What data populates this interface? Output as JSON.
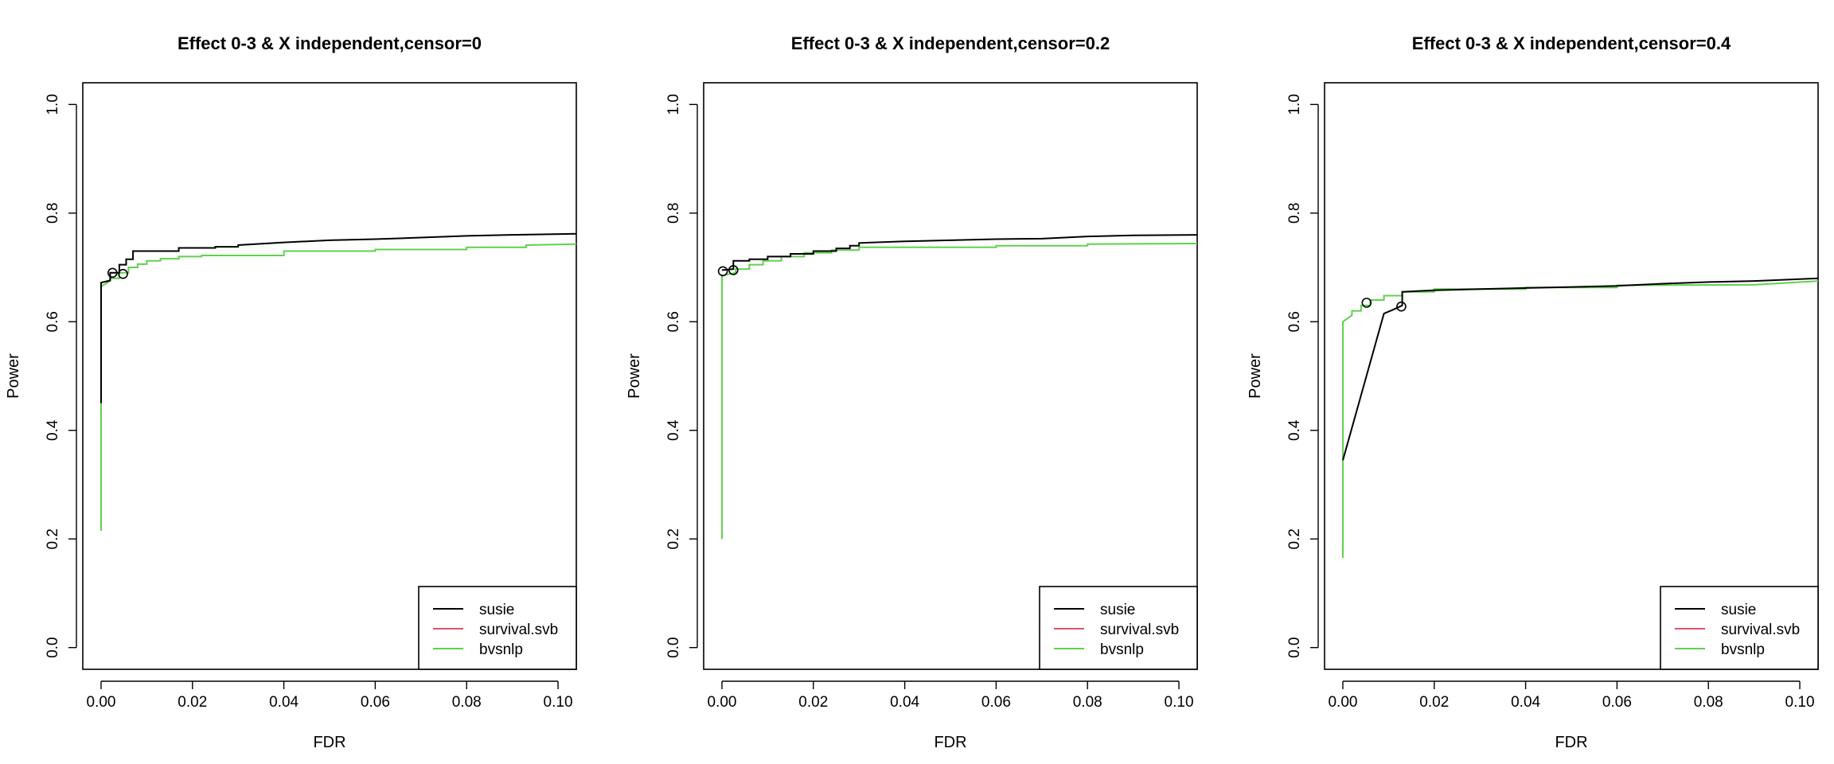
{
  "chart_data": [
    {
      "type": "line",
      "title": "Effect 0-3 & X independent,censor=0",
      "xlabel": "FDR",
      "ylabel": "Power",
      "xlim": [
        -0.004,
        0.104
      ],
      "ylim": [
        -0.04,
        1.04
      ],
      "xticks": [
        0.0,
        0.02,
        0.04,
        0.06,
        0.08,
        0.1
      ],
      "xtick_labels": [
        "0.00",
        "0.02",
        "0.04",
        "0.06",
        "0.08",
        "0.10"
      ],
      "yticks": [
        0.0,
        0.2,
        0.4,
        0.6,
        0.8,
        1.0
      ],
      "ytick_labels": [
        "0.0",
        "0.2",
        "0.4",
        "0.6",
        "0.8",
        "1.0"
      ],
      "grid": false,
      "legend_position": "bottom-right",
      "series": [
        {
          "name": "susie",
          "color": "#000000",
          "x": [
            0.0,
            0.0,
            0.0,
            0.002,
            0.002,
            0.004,
            0.004,
            0.0055,
            0.0055,
            0.007,
            0.007,
            0.012,
            0.017,
            0.017,
            0.025,
            0.025,
            0.03,
            0.03,
            0.04,
            0.05,
            0.06,
            0.07,
            0.08,
            0.09,
            0.104
          ],
          "y": [
            0.45,
            0.67,
            0.672,
            0.676,
            0.69,
            0.69,
            0.705,
            0.705,
            0.715,
            0.715,
            0.73,
            0.73,
            0.73,
            0.736,
            0.736,
            0.738,
            0.738,
            0.741,
            0.746,
            0.75,
            0.752,
            0.755,
            0.758,
            0.76,
            0.762
          ]
        },
        {
          "name": "survival.svb",
          "color": "#df536b",
          "x": [],
          "y": []
        },
        {
          "name": "bvsnlp",
          "color": "#61d04f",
          "x": [
            0.0,
            0.0,
            0.0,
            0.002,
            0.002,
            0.004,
            0.004,
            0.006,
            0.006,
            0.008,
            0.008,
            0.01,
            0.01,
            0.013,
            0.013,
            0.017,
            0.017,
            0.022,
            0.022,
            0.04,
            0.04,
            0.06,
            0.06,
            0.08,
            0.08,
            0.093,
            0.093,
            0.104
          ],
          "y": [
            0.215,
            0.44,
            0.665,
            0.675,
            0.68,
            0.68,
            0.69,
            0.69,
            0.7,
            0.7,
            0.706,
            0.706,
            0.712,
            0.712,
            0.716,
            0.716,
            0.72,
            0.72,
            0.722,
            0.722,
            0.73,
            0.73,
            0.733,
            0.733,
            0.737,
            0.737,
            0.741,
            0.743
          ]
        }
      ],
      "markers": [
        {
          "series": "susie",
          "x": 0.0025,
          "y": 0.69
        },
        {
          "series": "susie",
          "x": 0.0048,
          "y": 0.688
        }
      ]
    },
    {
      "type": "line",
      "title": "Effect 0-3 & X independent,censor=0.2",
      "xlabel": "FDR",
      "ylabel": "Power",
      "xlim": [
        -0.004,
        0.104
      ],
      "ylim": [
        -0.04,
        1.04
      ],
      "xticks": [
        0.0,
        0.02,
        0.04,
        0.06,
        0.08,
        0.1
      ],
      "xtick_labels": [
        "0.00",
        "0.02",
        "0.04",
        "0.06",
        "0.08",
        "0.10"
      ],
      "yticks": [
        0.0,
        0.2,
        0.4,
        0.6,
        0.8,
        1.0
      ],
      "ytick_labels": [
        "0.0",
        "0.2",
        "0.4",
        "0.6",
        "0.8",
        "1.0"
      ],
      "grid": false,
      "legend_position": "bottom-right",
      "series": [
        {
          "name": "susie",
          "color": "#000000",
          "x": [
            0.0,
            0.0025,
            0.0025,
            0.006,
            0.006,
            0.01,
            0.01,
            0.015,
            0.015,
            0.02,
            0.02,
            0.025,
            0.025,
            0.028,
            0.028,
            0.03,
            0.03,
            0.04,
            0.05,
            0.06,
            0.07,
            0.08,
            0.09,
            0.104
          ],
          "y": [
            0.695,
            0.697,
            0.712,
            0.712,
            0.715,
            0.715,
            0.72,
            0.72,
            0.725,
            0.725,
            0.73,
            0.73,
            0.735,
            0.735,
            0.74,
            0.74,
            0.745,
            0.748,
            0.75,
            0.752,
            0.753,
            0.757,
            0.759,
            0.76
          ]
        },
        {
          "name": "survival.svb",
          "color": "#df536b",
          "x": [],
          "y": []
        },
        {
          "name": "bvsnlp",
          "color": "#61d04f",
          "x": [
            0.0,
            0.0,
            0.0,
            0.003,
            0.003,
            0.006,
            0.006,
            0.009,
            0.009,
            0.013,
            0.013,
            0.018,
            0.018,
            0.024,
            0.024,
            0.03,
            0.03,
            0.06,
            0.06,
            0.08,
            0.08,
            0.104
          ],
          "y": [
            0.2,
            0.43,
            0.685,
            0.69,
            0.697,
            0.697,
            0.705,
            0.705,
            0.712,
            0.712,
            0.72,
            0.72,
            0.727,
            0.727,
            0.732,
            0.732,
            0.737,
            0.737,
            0.74,
            0.74,
            0.743,
            0.744
          ]
        }
      ],
      "markers": [
        {
          "series": "susie",
          "x": 0.0002,
          "y": 0.693
        },
        {
          "series": "susie",
          "x": 0.0025,
          "y": 0.695
        }
      ]
    },
    {
      "type": "line",
      "title": "Effect 0-3 & X independent,censor=0.4",
      "xlabel": "FDR",
      "ylabel": "Power",
      "xlim": [
        -0.004,
        0.104
      ],
      "ylim": [
        -0.04,
        1.04
      ],
      "xticks": [
        0.0,
        0.02,
        0.04,
        0.06,
        0.08,
        0.1
      ],
      "xtick_labels": [
        "0.00",
        "0.02",
        "0.04",
        "0.06",
        "0.08",
        "0.10"
      ],
      "yticks": [
        0.0,
        0.2,
        0.4,
        0.6,
        0.8,
        1.0
      ],
      "ytick_labels": [
        "0.0",
        "0.2",
        "0.4",
        "0.6",
        "0.8",
        "1.0"
      ],
      "grid": false,
      "legend_position": "bottom-right",
      "series": [
        {
          "name": "susie",
          "color": "#000000",
          "x": [
            0.0,
            0.009,
            0.011,
            0.0125,
            0.013,
            0.013,
            0.02,
            0.03,
            0.04,
            0.05,
            0.06,
            0.07,
            0.08,
            0.09,
            0.104
          ],
          "y": [
            0.345,
            0.615,
            0.622,
            0.628,
            0.63,
            0.655,
            0.658,
            0.66,
            0.662,
            0.664,
            0.666,
            0.67,
            0.673,
            0.675,
            0.68
          ]
        },
        {
          "name": "survival.svb",
          "color": "#df536b",
          "x": [],
          "y": []
        },
        {
          "name": "bvsnlp",
          "color": "#61d04f",
          "x": [
            0.0,
            0.0,
            0.0,
            0.002,
            0.002,
            0.004,
            0.004,
            0.006,
            0.006,
            0.009,
            0.009,
            0.013,
            0.013,
            0.02,
            0.02,
            0.04,
            0.04,
            0.06,
            0.06,
            0.09,
            0.104
          ],
          "y": [
            0.165,
            0.35,
            0.6,
            0.612,
            0.62,
            0.62,
            0.63,
            0.63,
            0.64,
            0.64,
            0.648,
            0.648,
            0.655,
            0.655,
            0.66,
            0.66,
            0.663,
            0.663,
            0.667,
            0.668,
            0.675
          ]
        }
      ],
      "markers": [
        {
          "series": "bvsnlp",
          "x": 0.0052,
          "y": 0.635
        },
        {
          "series": "susie",
          "x": 0.0128,
          "y": 0.628
        }
      ]
    }
  ]
}
